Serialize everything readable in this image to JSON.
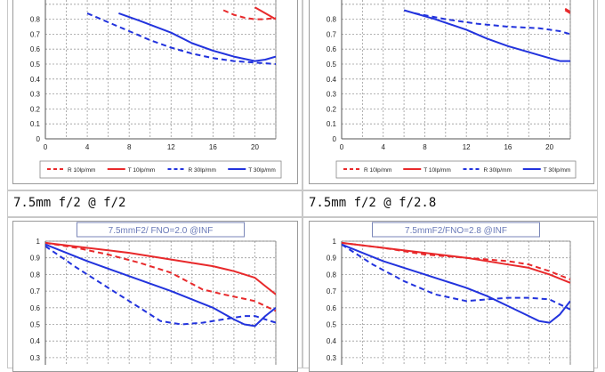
{
  "captions": [
    "7.5mm f/2 @ f/2",
    "7.5mm f/2 @ f/2.8"
  ],
  "chart_data": [
    {
      "type": "line",
      "title": "",
      "xlabel": "",
      "ylabel": "",
      "xlim": [
        0,
        22
      ],
      "ylim": [
        0,
        1
      ],
      "xticks": [
        0,
        4,
        8,
        12,
        16,
        20
      ],
      "yticks": [
        0,
        0.1,
        0.2,
        0.3,
        0.4,
        0.5,
        0.6,
        0.7,
        0.8
      ],
      "grid": true,
      "legend": "bottom",
      "series": [
        {
          "name": "R 10lp/mm",
          "color": "#e8292b",
          "dash": true,
          "x": [
            17,
            18,
            19,
            20,
            21,
            22
          ],
          "y": [
            0.86,
            0.83,
            0.81,
            0.8,
            0.8,
            0.81
          ]
        },
        {
          "name": "T 10lp/mm",
          "color": "#e8292b",
          "dash": false,
          "x": [
            20,
            21,
            22
          ],
          "y": [
            0.88,
            0.84,
            0.8
          ]
        },
        {
          "name": "R 30lp/mm",
          "color": "#2233dd",
          "dash": true,
          "x": [
            4,
            6,
            8,
            10,
            12,
            14,
            16,
            18,
            20,
            22
          ],
          "y": [
            0.84,
            0.78,
            0.72,
            0.66,
            0.61,
            0.57,
            0.54,
            0.52,
            0.51,
            0.5
          ]
        },
        {
          "name": "T 30lp/mm",
          "color": "#2233dd",
          "dash": false,
          "x": [
            7,
            9,
            12,
            14,
            16,
            18,
            20,
            21,
            22
          ],
          "y": [
            0.84,
            0.79,
            0.71,
            0.64,
            0.59,
            0.55,
            0.52,
            0.53,
            0.55
          ]
        }
      ]
    },
    {
      "type": "line",
      "title": "",
      "xlabel": "",
      "ylabel": "",
      "xlim": [
        0,
        22
      ],
      "ylim": [
        0,
        1
      ],
      "xticks": [
        0,
        4,
        8,
        12,
        16,
        20
      ],
      "yticks": [
        0,
        0.1,
        0.2,
        0.3,
        0.4,
        0.5,
        0.6,
        0.7,
        0.8
      ],
      "grid": true,
      "legend": "bottom",
      "series": [
        {
          "name": "R 10lp/mm",
          "color": "#e8292b",
          "dash": true,
          "x": [
            21.5,
            22
          ],
          "y": [
            0.87,
            0.85
          ]
        },
        {
          "name": "T 10lp/mm",
          "color": "#e8292b",
          "dash": false,
          "x": [
            21.5,
            22
          ],
          "y": [
            0.86,
            0.84
          ]
        },
        {
          "name": "R 30lp/mm",
          "color": "#2233dd",
          "dash": true,
          "x": [
            7,
            10,
            13,
            16,
            19,
            21,
            22
          ],
          "y": [
            0.84,
            0.8,
            0.77,
            0.75,
            0.74,
            0.72,
            0.7
          ]
        },
        {
          "name": "T 30lp/mm",
          "color": "#2233dd",
          "dash": false,
          "x": [
            6,
            9,
            12,
            14,
            16,
            18,
            20,
            21,
            22
          ],
          "y": [
            0.86,
            0.8,
            0.73,
            0.67,
            0.62,
            0.58,
            0.54,
            0.52,
            0.52
          ]
        }
      ]
    },
    {
      "type": "line",
      "title": "7.5mmF2/ FNO=2.0  @INF",
      "xlabel": "",
      "ylabel": "",
      "xlim": [
        0,
        22
      ],
      "ylim": [
        0,
        1
      ],
      "yticks": [
        0.3,
        0.4,
        0.5,
        0.6,
        0.7,
        0.8,
        0.9,
        1
      ],
      "grid": true,
      "series": [
        {
          "name": "R 10lp/mm",
          "color": "#e8292b",
          "dash": true,
          "x": [
            0,
            3,
            6,
            9,
            12,
            15,
            17,
            20,
            22
          ],
          "y": [
            0.99,
            0.96,
            0.92,
            0.87,
            0.81,
            0.71,
            0.68,
            0.64,
            0.58
          ]
        },
        {
          "name": "T 10lp/mm",
          "color": "#e8292b",
          "dash": false,
          "x": [
            0,
            4,
            8,
            12,
            16,
            18,
            20,
            21,
            22
          ],
          "y": [
            0.99,
            0.96,
            0.93,
            0.89,
            0.85,
            0.82,
            0.78,
            0.73,
            0.68
          ]
        },
        {
          "name": "R 30lp/mm",
          "color": "#2233dd",
          "dash": true,
          "x": [
            0,
            3,
            6,
            9,
            11,
            13,
            15,
            17,
            19,
            20,
            22
          ],
          "y": [
            0.97,
            0.84,
            0.72,
            0.6,
            0.52,
            0.5,
            0.51,
            0.53,
            0.55,
            0.55,
            0.51
          ]
        },
        {
          "name": "T 30lp/mm",
          "color": "#2233dd",
          "dash": false,
          "x": [
            0,
            4,
            8,
            12,
            14,
            16,
            18,
            19,
            20,
            21,
            22
          ],
          "y": [
            0.98,
            0.88,
            0.79,
            0.7,
            0.65,
            0.6,
            0.53,
            0.5,
            0.49,
            0.55,
            0.6
          ]
        }
      ]
    },
    {
      "type": "line",
      "title": "7.5mmF2/FNO=2.8  @INF",
      "xlabel": "",
      "ylabel": "",
      "xlim": [
        0,
        22
      ],
      "ylim": [
        0,
        1
      ],
      "yticks": [
        0.3,
        0.4,
        0.5,
        0.6,
        0.7,
        0.8,
        0.9,
        1
      ],
      "grid": true,
      "series": [
        {
          "name": "R 10lp/mm",
          "color": "#e8292b",
          "dash": true,
          "x": [
            0,
            4,
            8,
            12,
            16,
            18,
            20,
            22
          ],
          "y": [
            0.99,
            0.96,
            0.92,
            0.9,
            0.88,
            0.86,
            0.82,
            0.77
          ]
        },
        {
          "name": "T 10lp/mm",
          "color": "#e8292b",
          "dash": false,
          "x": [
            0,
            4,
            8,
            12,
            16,
            18,
            20,
            22
          ],
          "y": [
            0.99,
            0.96,
            0.93,
            0.9,
            0.86,
            0.84,
            0.8,
            0.75
          ]
        },
        {
          "name": "R 30lp/mm",
          "color": "#2233dd",
          "dash": true,
          "x": [
            0,
            3,
            6,
            9,
            12,
            14,
            16,
            18,
            20,
            22
          ],
          "y": [
            0.98,
            0.86,
            0.76,
            0.68,
            0.64,
            0.65,
            0.66,
            0.66,
            0.65,
            0.59
          ]
        },
        {
          "name": "T 30lp/mm",
          "color": "#2233dd",
          "dash": false,
          "x": [
            0,
            4,
            8,
            12,
            14,
            16,
            18,
            19,
            20,
            21,
            22
          ],
          "y": [
            0.98,
            0.88,
            0.8,
            0.72,
            0.67,
            0.61,
            0.55,
            0.52,
            0.51,
            0.56,
            0.64
          ]
        }
      ]
    }
  ]
}
